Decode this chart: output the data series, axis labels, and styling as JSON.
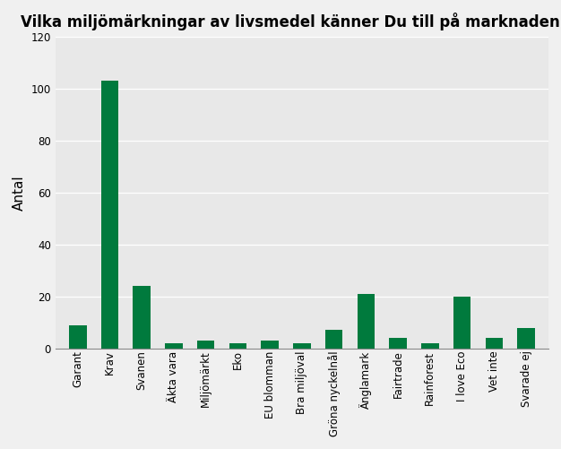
{
  "title": "Vilka miljömärkningar av livsmedel känner Du till på marknaden idag?",
  "ylabel": "Antal",
  "categories": [
    "Garant",
    "Krav",
    "Svanen",
    "Äkta vara",
    "Miljömärkt",
    "Eko",
    "EU blomman",
    "Bra miljöval",
    "Gröna nyckelnål",
    "Änglamark",
    "Fairtrade",
    "Rainforest",
    "I love Eco",
    "Vet inte",
    "Svarade ej"
  ],
  "values": [
    9,
    103,
    24,
    2,
    3,
    2,
    3,
    2,
    7,
    21,
    4,
    2,
    20,
    4,
    8
  ],
  "bar_color": "#007a3d",
  "ylim": [
    0,
    120
  ],
  "yticks": [
    0,
    20,
    40,
    60,
    80,
    100,
    120
  ],
  "plot_bg_color": "#e8e8e8",
  "fig_bg_color": "#f0f0f0",
  "title_fontsize": 12,
  "ylabel_fontsize": 11,
  "tick_fontsize": 8.5,
  "bar_width": 0.55
}
